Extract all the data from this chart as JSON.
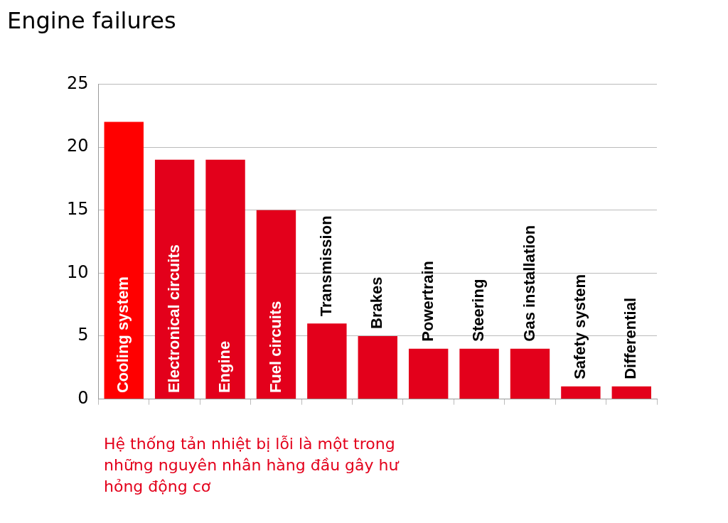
{
  "chart_data": {
    "type": "bar",
    "title": "Engine failures",
    "categories": [
      "Cooling system",
      "Electronical circuits",
      "Engine",
      "Fuel circuits",
      "Transmission",
      "Brakes",
      "Powertrain",
      "Steering",
      "Gas installation",
      "Safety system",
      "Differential"
    ],
    "values": [
      22,
      19,
      19,
      15,
      6,
      5,
      4,
      4,
      4,
      1,
      1
    ],
    "colors": [
      "#ff0000",
      "#e3001b",
      "#e3001b",
      "#e3001b",
      "#e3001b",
      "#e3001b",
      "#e3001b",
      "#e3001b",
      "#e3001b",
      "#e3001b",
      "#e3001b"
    ],
    "ylim": [
      0,
      25
    ],
    "yticks": [
      0,
      5,
      10,
      15,
      20,
      25
    ],
    "grid": "y",
    "annotations": [
      "Hệ thống tản nhiệt bị lỗi là một trong những nguyên nhân hàng đầu gây hư hỏng động cơ"
    ]
  }
}
